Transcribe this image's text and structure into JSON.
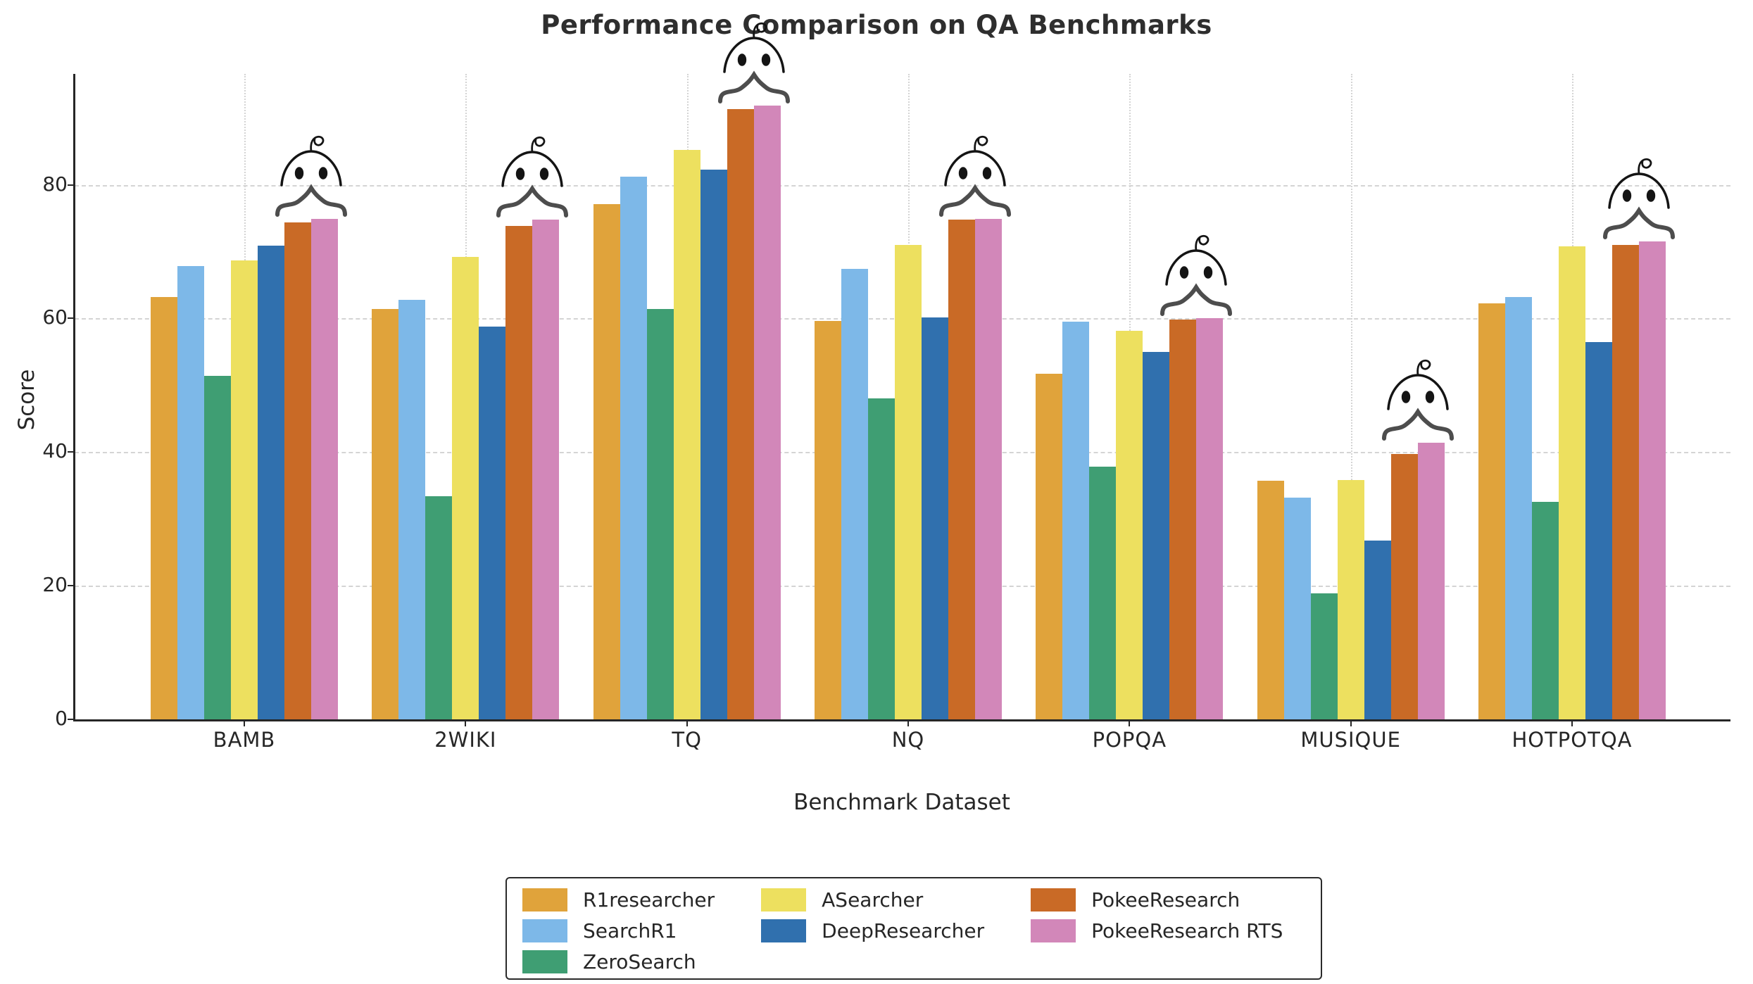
{
  "chart_data": {
    "type": "bar",
    "title": "Performance Comparison on QA Benchmarks",
    "xlabel": "Benchmark Dataset",
    "ylabel": "Score",
    "categories": [
      "BAMB",
      "2WIKI",
      "TQ",
      "NQ",
      "POPQA",
      "MUSIQUE",
      "HOTPOTQA"
    ],
    "series": [
      {
        "name": "R1researcher",
        "color": "#E0A33B",
        "values": [
          63.2,
          61.4,
          77.1,
          59.6,
          51.7,
          35.7,
          62.3
        ]
      },
      {
        "name": "SearchR1",
        "color": "#7DB8E8",
        "values": [
          67.8,
          62.8,
          81.2,
          67.4,
          59.5,
          33.2,
          63.2
        ]
      },
      {
        "name": "ZeroSearch",
        "color": "#3F9E73",
        "values": [
          51.4,
          33.4,
          61.4,
          48.0,
          37.8,
          18.9,
          32.5
        ]
      },
      {
        "name": "ASearcher",
        "color": "#EDE05F",
        "values": [
          68.7,
          69.2,
          85.2,
          71.0,
          58.1,
          35.8,
          70.8
        ]
      },
      {
        "name": "DeepResearcher",
        "color": "#3070AE",
        "values": [
          70.9,
          58.8,
          82.3,
          60.1,
          55.0,
          26.8,
          56.5
        ]
      },
      {
        "name": "PokeeResearch",
        "color": "#C96A26",
        "values": [
          74.4,
          73.8,
          91.3,
          74.8,
          59.8,
          39.7,
          71.0
        ]
      },
      {
        "name": "PokeeResearch RTS",
        "color": "#D287B9",
        "values": [
          74.9,
          74.8,
          91.9,
          74.9,
          60.0,
          41.4,
          71.5
        ]
      }
    ],
    "yticks": [
      0,
      20,
      40,
      60,
      80
    ],
    "ylim": [
      0,
      96.6
    ],
    "grid": true,
    "legend_position": "bottom-center",
    "legend_columns": 3,
    "annotations": {
      "mascot": "robot face with antenna over a curly brace above the PokeeResearch and PokeeResearch RTS bar pair in every category"
    }
  },
  "colors": {
    "title": "#2e2e2e",
    "axis": "#262626",
    "gridline": "#d4d4d4",
    "brace": "#4d4d4d",
    "mascot_ink": "#141414",
    "background": "#ffffff"
  }
}
